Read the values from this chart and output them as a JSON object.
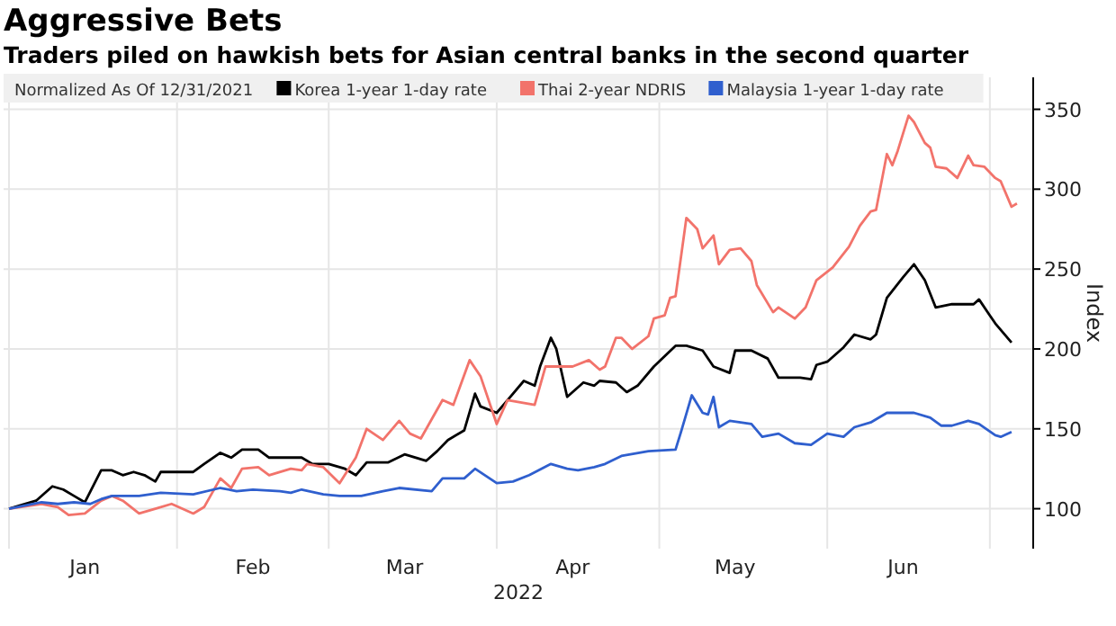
{
  "chart_data": {
    "type": "line",
    "title": "Aggressive Bets",
    "subtitle": "Traders piled on hawkish bets for Asian central banks in the second quarter",
    "legend_title": "Normalized As Of 12/31/2021",
    "legend": "top",
    "xlabel": "2022",
    "ylabel": "Index",
    "grid": true,
    "marker": "none",
    "line_style": "solid",
    "xlim": [
      "2021-12-31",
      "2022-07-09"
    ],
    "xticks": [
      {
        "value": "2022-01-01",
        "label": null
      },
      {
        "value": "2022-01-15",
        "label": "Jan"
      },
      {
        "value": "2022-02-01",
        "label": null
      },
      {
        "value": "2022-02-15",
        "label": "Feb"
      },
      {
        "value": "2022-03-01",
        "label": null
      },
      {
        "value": "2022-03-15",
        "label": "Mar"
      },
      {
        "value": "2022-04-01",
        "label": null
      },
      {
        "value": "2022-04-15",
        "label": "Apr"
      },
      {
        "value": "2022-05-01",
        "label": null
      },
      {
        "value": "2022-05-15",
        "label": "May"
      },
      {
        "value": "2022-06-01",
        "label": null
      },
      {
        "value": "2022-06-15",
        "label": "Jun"
      },
      {
        "value": "2022-07-01",
        "label": null
      }
    ],
    "ylim": [
      75,
      370
    ],
    "yticks": [
      100,
      150,
      200,
      250,
      300,
      350
    ],
    "series": [
      {
        "name": "Korea 1-year 1-day rate",
        "color": "#000000",
        "x": [
          "2022-01-01",
          "2022-01-06",
          "2022-01-09",
          "2022-01-11",
          "2022-01-13",
          "2022-01-15",
          "2022-01-18",
          "2022-01-20",
          "2022-01-22",
          "2022-01-24",
          "2022-01-26",
          "2022-01-28",
          "2022-01-29",
          "2022-02-04",
          "2022-02-06",
          "2022-02-09",
          "2022-02-11",
          "2022-02-13",
          "2022-02-16",
          "2022-02-18",
          "2022-02-22",
          "2022-02-24",
          "2022-02-26",
          "2022-03-01",
          "2022-03-04",
          "2022-03-06",
          "2022-03-08",
          "2022-03-12",
          "2022-03-15",
          "2022-03-19",
          "2022-03-21",
          "2022-03-23",
          "2022-03-26",
          "2022-03-28",
          "2022-03-29",
          "2022-04-01",
          "2022-04-03",
          "2022-04-06",
          "2022-04-08",
          "2022-04-09",
          "2022-04-11",
          "2022-04-12",
          "2022-04-14",
          "2022-04-17",
          "2022-04-19",
          "2022-04-20",
          "2022-04-23",
          "2022-04-25",
          "2022-04-27",
          "2022-04-30",
          "2022-05-04",
          "2022-05-06",
          "2022-05-09",
          "2022-05-11",
          "2022-05-14",
          "2022-05-15",
          "2022-05-18",
          "2022-05-21",
          "2022-05-23",
          "2022-05-27",
          "2022-05-29",
          "2022-05-30",
          "2022-06-01",
          "2022-06-04",
          "2022-06-06",
          "2022-06-09",
          "2022-06-10",
          "2022-06-12",
          "2022-06-15",
          "2022-06-17",
          "2022-06-19",
          "2022-06-21",
          "2022-06-24",
          "2022-06-28",
          "2022-06-29",
          "2022-07-01",
          "2022-07-02",
          "2022-07-05"
        ],
        "values": [
          100,
          105,
          114,
          112,
          108,
          104,
          124,
          124,
          121,
          123,
          121,
          117,
          123,
          123,
          128,
          135,
          132,
          137,
          137,
          132,
          132,
          132,
          128,
          128,
          125,
          121,
          129,
          129,
          134,
          130,
          136,
          143,
          149,
          172,
          164,
          160,
          168,
          180,
          177,
          189,
          207,
          200,
          170,
          179,
          177,
          180,
          179,
          173,
          177,
          189,
          202,
          202,
          199,
          189,
          185,
          199,
          199,
          194,
          182,
          182,
          181,
          190,
          192,
          201,
          209,
          206,
          209,
          232,
          245,
          253,
          243,
          226,
          228,
          228,
          231,
          221,
          216,
          204
        ]
      },
      {
        "name": "Thai 2-year NDRIS",
        "color": "#f2736b",
        "x": [
          "2022-01-01",
          "2022-01-07",
          "2022-01-10",
          "2022-01-12",
          "2022-01-15",
          "2022-01-18",
          "2022-01-20",
          "2022-01-22",
          "2022-01-25",
          "2022-01-28",
          "2022-01-31",
          "2022-02-04",
          "2022-02-06",
          "2022-02-09",
          "2022-02-11",
          "2022-02-13",
          "2022-02-16",
          "2022-02-18",
          "2022-02-22",
          "2022-02-24",
          "2022-02-25",
          "2022-02-28",
          "2022-03-03",
          "2022-03-06",
          "2022-03-08",
          "2022-03-11",
          "2022-03-14",
          "2022-03-16",
          "2022-03-18",
          "2022-03-22",
          "2022-03-24",
          "2022-03-27",
          "2022-03-29",
          "2022-04-01",
          "2022-04-03",
          "2022-04-08",
          "2022-04-10",
          "2022-04-15",
          "2022-04-18",
          "2022-04-20",
          "2022-04-21",
          "2022-04-23",
          "2022-04-24",
          "2022-04-26",
          "2022-04-29",
          "2022-04-30",
          "2022-05-02",
          "2022-05-03",
          "2022-05-04",
          "2022-05-06",
          "2022-05-08",
          "2022-05-09",
          "2022-05-11",
          "2022-05-12",
          "2022-05-14",
          "2022-05-16",
          "2022-05-18",
          "2022-05-19",
          "2022-05-22",
          "2022-05-23",
          "2022-05-26",
          "2022-05-28",
          "2022-05-30",
          "2022-06-02",
          "2022-06-05",
          "2022-06-07",
          "2022-06-09",
          "2022-06-10",
          "2022-06-12",
          "2022-06-13",
          "2022-06-14",
          "2022-06-16",
          "2022-06-17",
          "2022-06-19",
          "2022-06-20",
          "2022-06-21",
          "2022-06-23",
          "2022-06-25",
          "2022-06-27",
          "2022-06-28",
          "2022-06-30",
          "2022-07-02",
          "2022-07-03",
          "2022-07-05",
          "2022-07-06"
        ],
        "values": [
          100,
          103,
          101,
          96,
          97,
          105,
          108,
          105,
          97,
          100,
          103,
          97,
          101,
          119,
          113,
          125,
          126,
          121,
          125,
          124,
          128,
          126,
          116,
          132,
          150,
          143,
          155,
          147,
          144,
          168,
          165,
          193,
          183,
          153,
          168,
          165,
          189,
          189,
          193,
          187,
          189,
          207,
          207,
          200,
          208,
          219,
          221,
          232,
          233,
          282,
          275,
          263,
          271,
          253,
          262,
          263,
          255,
          240,
          223,
          226,
          219,
          226,
          243,
          251,
          264,
          277,
          286,
          287,
          322,
          315,
          324,
          346,
          342,
          329,
          326,
          314,
          313,
          307,
          321,
          315,
          314,
          307,
          305,
          289,
          291
        ]
      },
      {
        "name": "Malaysia 1-year 1-day rate",
        "color": "#2f5fce",
        "x": [
          "2022-01-01",
          "2022-01-07",
          "2022-01-10",
          "2022-01-13",
          "2022-01-16",
          "2022-01-18",
          "2022-01-20",
          "2022-01-25",
          "2022-01-29",
          "2022-02-04",
          "2022-02-09",
          "2022-02-12",
          "2022-02-15",
          "2022-02-20",
          "2022-02-22",
          "2022-02-24",
          "2022-02-28",
          "2022-03-03",
          "2022-03-07",
          "2022-03-11",
          "2022-03-14",
          "2022-03-20",
          "2022-03-22",
          "2022-03-26",
          "2022-03-28",
          "2022-04-01",
          "2022-04-04",
          "2022-04-07",
          "2022-04-11",
          "2022-04-14",
          "2022-04-16",
          "2022-04-19",
          "2022-04-21",
          "2022-04-24",
          "2022-04-29",
          "2022-05-04",
          "2022-05-05",
          "2022-05-07",
          "2022-05-09",
          "2022-05-10",
          "2022-05-11",
          "2022-05-12",
          "2022-05-14",
          "2022-05-18",
          "2022-05-20",
          "2022-05-23",
          "2022-05-26",
          "2022-05-29",
          "2022-06-01",
          "2022-06-04",
          "2022-06-06",
          "2022-06-09",
          "2022-06-12",
          "2022-06-17",
          "2022-06-20",
          "2022-06-22",
          "2022-06-24",
          "2022-06-27",
          "2022-06-29",
          "2022-07-02",
          "2022-07-03",
          "2022-07-05"
        ],
        "values": [
          100,
          104,
          103,
          104,
          103,
          106,
          108,
          108,
          110,
          109,
          113,
          111,
          112,
          111,
          110,
          112,
          109,
          108,
          108,
          111,
          113,
          111,
          119,
          119,
          125,
          116,
          117,
          121,
          128,
          125,
          124,
          126,
          128,
          133,
          136,
          137,
          148,
          171,
          160,
          159,
          170,
          151,
          155,
          153,
          145,
          147,
          141,
          140,
          147,
          145,
          151,
          154,
          160,
          160,
          157,
          152,
          152,
          155,
          153,
          146,
          145,
          148
        ]
      }
    ]
  }
}
